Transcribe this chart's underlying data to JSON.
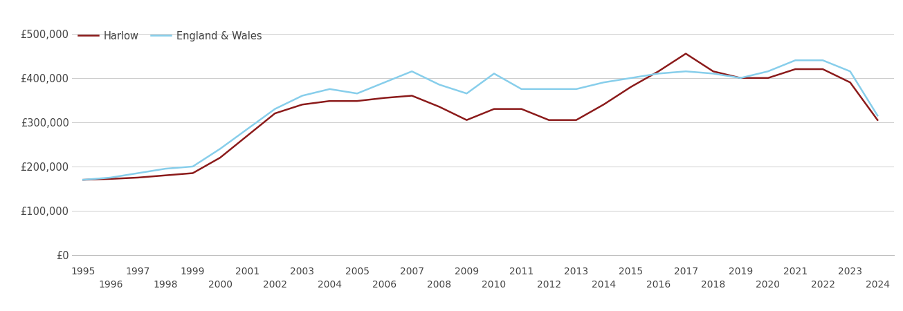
{
  "years": [
    1995,
    1996,
    1997,
    1998,
    1999,
    2000,
    2001,
    2002,
    2003,
    2004,
    2005,
    2006,
    2007,
    2008,
    2009,
    2010,
    2011,
    2012,
    2013,
    2014,
    2015,
    2016,
    2017,
    2018,
    2019,
    2020,
    2021,
    2022,
    2023,
    2024
  ],
  "harlow": [
    170000,
    172000,
    175000,
    180000,
    185000,
    220000,
    270000,
    320000,
    340000,
    348000,
    348000,
    355000,
    360000,
    335000,
    305000,
    330000,
    330000,
    305000,
    305000,
    340000,
    380000,
    415000,
    455000,
    415000,
    400000,
    400000,
    420000,
    420000,
    390000,
    305000
  ],
  "england_wales": [
    170000,
    175000,
    185000,
    195000,
    200000,
    240000,
    285000,
    330000,
    360000,
    375000,
    365000,
    390000,
    415000,
    385000,
    365000,
    410000,
    375000,
    375000,
    375000,
    390000,
    400000,
    410000,
    415000,
    410000,
    400000,
    415000,
    440000,
    440000,
    415000,
    315000
  ],
  "harlow_color": "#8B1A1A",
  "ew_color": "#87CEEB",
  "background_color": "#ffffff",
  "grid_color": "#cccccc",
  "ylim": [
    0,
    520000
  ],
  "yticks": [
    0,
    100000,
    200000,
    300000,
    400000,
    500000
  ],
  "ytick_labels": [
    "£0",
    "£100,000",
    "£200,000",
    "£300,000",
    "£400,000",
    "£500,000"
  ],
  "xlim": [
    1994.6,
    2024.6
  ],
  "legend_harlow": "Harlow",
  "legend_ew": "England & Wales"
}
